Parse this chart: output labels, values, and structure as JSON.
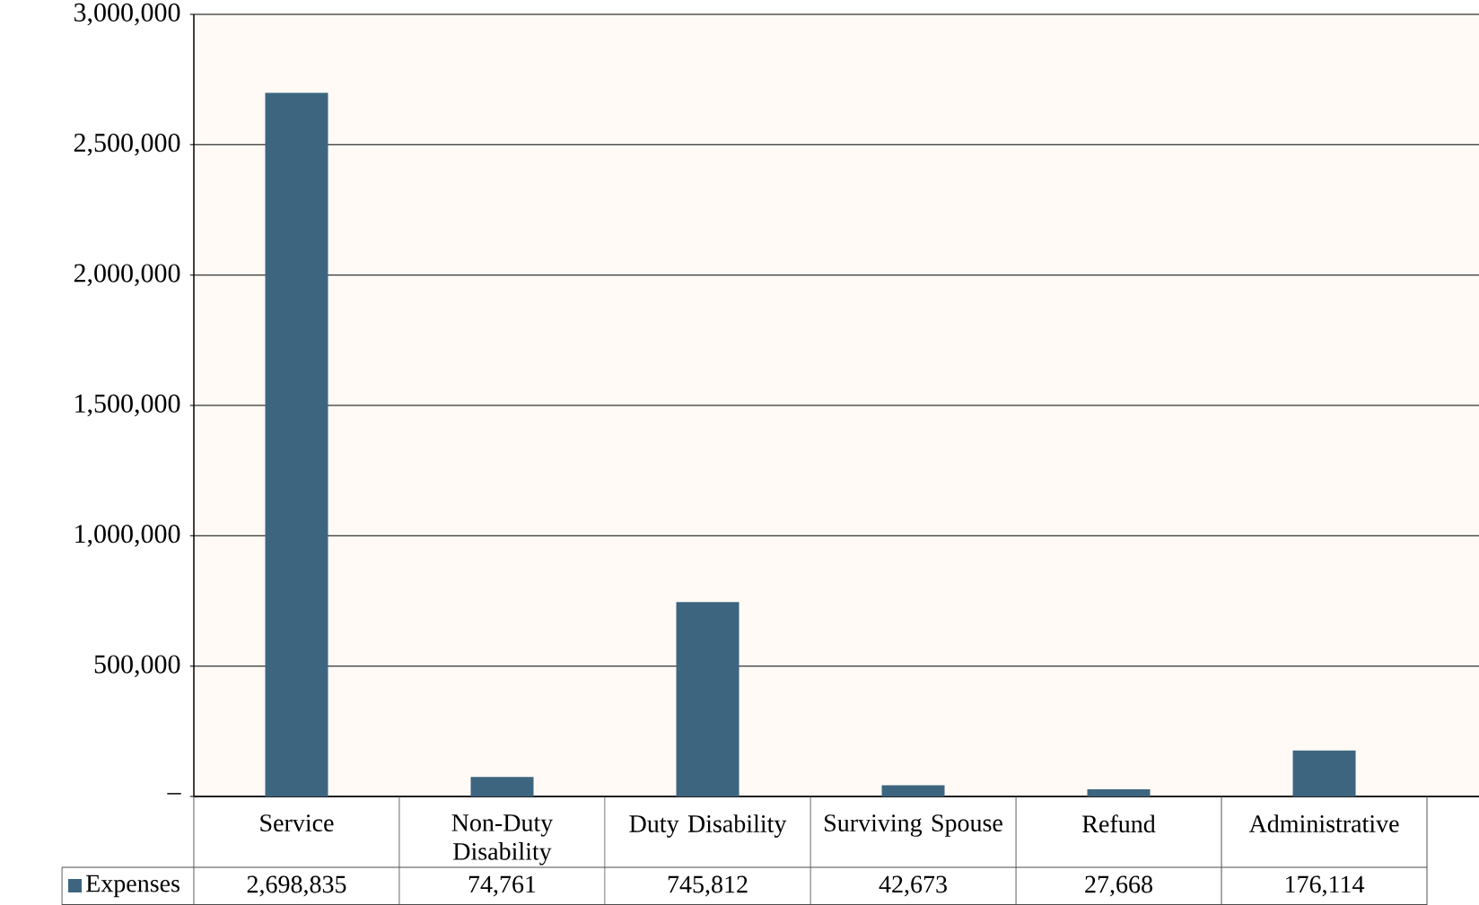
{
  "chart_data": {
    "type": "bar",
    "categories": [
      "Service",
      "Non-Duty Disability",
      "Duty Disability",
      "Surviving Spouse",
      "Refund",
      "Administrative"
    ],
    "series": [
      {
        "name": "Expenses",
        "color": "#3d6580",
        "values": [
          2698835,
          74761,
          745812,
          42673,
          27668,
          176114
        ],
        "value_labels": [
          "2,698,835",
          "74,761",
          "745,812",
          "42,673",
          "27,668",
          "176,114"
        ]
      }
    ],
    "ylim": [
      0,
      3000000
    ],
    "yticks": [
      {
        "value": 0,
        "label": "–"
      },
      {
        "value": 500000,
        "label": "500,000"
      },
      {
        "value": 1000000,
        "label": "1,000,000"
      },
      {
        "value": 1500000,
        "label": "1,500,000"
      },
      {
        "value": 2000000,
        "label": "2,000,000"
      },
      {
        "value": 2500000,
        "label": "2,500,000"
      },
      {
        "value": 3000000,
        "label": "3,000,000"
      }
    ],
    "grid": "y",
    "legend": "bottom"
  }
}
